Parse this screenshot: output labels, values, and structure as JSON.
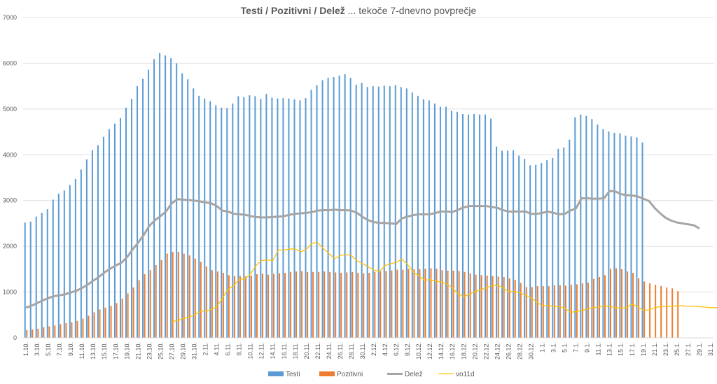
{
  "chart_data": {
    "type": "bar",
    "title_bold": "Testi / Pozitivni / Delež",
    "title_rest": " ... tekoče 7-dnevno povprečje",
    "ylim": [
      0,
      7000
    ],
    "yticks": [
      0,
      1000,
      2000,
      3000,
      4000,
      5000,
      6000,
      7000
    ],
    "x_tick_labels": [
      "1.10.",
      "3.10.",
      "5.10.",
      "7.10.",
      "9.10.",
      "11.10.",
      "13.10.",
      "15.10.",
      "17.10.",
      "19.10.",
      "21.10.",
      "23.10.",
      "25.10.",
      "27.10.",
      "29.10.",
      "31.10.",
      "2.11.",
      "4.11.",
      "6.11.",
      "8.11.",
      "10.11.",
      "12.11.",
      "14.11.",
      "16.11.",
      "18.11.",
      "20.11.",
      "22.11.",
      "24.11.",
      "26.11.",
      "28.11.",
      "30.11.",
      "2.12.",
      "4.12.",
      "6.12.",
      "8.12.",
      "10.12.",
      "12.12.",
      "14.12.",
      "16.12.",
      "18.12.",
      "20.12.",
      "22.12.",
      "24.12.",
      "26.12.",
      "28.12.",
      "30.12.",
      "1.1.",
      "3.1.",
      "5.1.",
      "7.1.",
      "9.1.",
      "11.1.",
      "13.1.",
      "15.1.",
      "17.1.",
      "19.1.",
      "21.1.",
      "23.1.",
      "25.1.",
      "27.1.",
      "29.1.",
      "31.1."
    ],
    "legend": [
      {
        "name": "Testi",
        "color": "#5b9bd5",
        "kind": "bar"
      },
      {
        "name": "Pozitivni",
        "color": "#ed7d31",
        "kind": "bar"
      },
      {
        "name": "Delež",
        "color": "#a5a5a5",
        "kind": "line"
      },
      {
        "name": "vo11d",
        "color": "#ffc000",
        "kind": "line"
      }
    ],
    "series": [
      {
        "name": "Testi",
        "values": [
          2520,
          2540,
          2650,
          2730,
          2810,
          3020,
          3150,
          3220,
          3340,
          3470,
          3680,
          3900,
          4100,
          4210,
          4390,
          4560,
          4680,
          4800,
          5030,
          5220,
          5500,
          5660,
          5860,
          6090,
          6220,
          6170,
          6110,
          6000,
          5780,
          5650,
          5450,
          5290,
          5230,
          5170,
          5080,
          5030,
          5020,
          5120,
          5280,
          5260,
          5300,
          5280,
          5220,
          5330,
          5250,
          5230,
          5240,
          5230,
          5210,
          5190,
          5240,
          5420,
          5520,
          5630,
          5680,
          5700,
          5730,
          5760,
          5680,
          5530,
          5570,
          5480,
          5500,
          5490,
          5510,
          5500,
          5520,
          5480,
          5450,
          5360,
          5290,
          5210,
          5190,
          5120,
          5050,
          5050,
          4960,
          4940,
          4890,
          4880,
          4890,
          4880,
          4880,
          4790,
          4180,
          4090,
          4090,
          4100,
          3980,
          3910,
          3770,
          3780,
          3820,
          3880,
          3930,
          4130,
          4160,
          4330,
          4820,
          4880,
          4850,
          4780,
          4660,
          4560,
          4510,
          4480,
          4470,
          4420,
          4400,
          4380,
          4270
        ],
        "color": "#5b9bd5"
      },
      {
        "name": "Pozitivni",
        "values": [
          170,
          180,
          200,
          230,
          250,
          270,
          300,
          320,
          340,
          370,
          420,
          480,
          560,
          620,
          660,
          700,
          760,
          860,
          970,
          1100,
          1260,
          1390,
          1480,
          1590,
          1700,
          1840,
          1880,
          1880,
          1840,
          1800,
          1730,
          1660,
          1560,
          1480,
          1450,
          1420,
          1370,
          1350,
          1350,
          1340,
          1360,
          1390,
          1400,
          1380,
          1400,
          1410,
          1420,
          1440,
          1450,
          1460,
          1440,
          1440,
          1440,
          1450,
          1440,
          1430,
          1420,
          1430,
          1440,
          1420,
          1410,
          1420,
          1440,
          1450,
          1460,
          1470,
          1490,
          1490,
          1510,
          1500,
          1500,
          1510,
          1520,
          1510,
          1480,
          1470,
          1470,
          1460,
          1440,
          1410,
          1380,
          1370,
          1360,
          1350,
          1340,
          1330,
          1300,
          1270,
          1200,
          1110,
          1110,
          1130,
          1130,
          1130,
          1150,
          1150,
          1140,
          1160,
          1170,
          1190,
          1210,
          1290,
          1330,
          1370,
          1510,
          1520,
          1500,
          1450,
          1420,
          1300,
          1230,
          1190,
          1160,
          1130,
          1100,
          1080,
          1020
        ],
        "color": "#ed7d31"
      },
      {
        "name": "Delež",
        "values": [
          660,
          700,
          760,
          820,
          870,
          910,
          930,
          950,
          990,
          1030,
          1090,
          1160,
          1250,
          1330,
          1430,
          1510,
          1580,
          1640,
          1760,
          1930,
          2080,
          2250,
          2450,
          2570,
          2660,
          2770,
          2940,
          3030,
          3020,
          3010,
          3000,
          2980,
          2960,
          2940,
          2880,
          2780,
          2760,
          2710,
          2700,
          2690,
          2660,
          2640,
          2630,
          2630,
          2640,
          2650,
          2660,
          2690,
          2710,
          2720,
          2730,
          2750,
          2780,
          2790,
          2790,
          2800,
          2790,
          2790,
          2780,
          2730,
          2640,
          2570,
          2530,
          2510,
          2510,
          2500,
          2490,
          2610,
          2650,
          2680,
          2700,
          2700,
          2700,
          2730,
          2760,
          2760,
          2750,
          2800,
          2850,
          2880,
          2880,
          2880,
          2880,
          2860,
          2840,
          2790,
          2760,
          2760,
          2760,
          2760,
          2710,
          2710,
          2730,
          2760,
          2730,
          2700,
          2710,
          2780,
          2830,
          3050,
          3050,
          3040,
          3040,
          3050,
          3210,
          3200,
          3140,
          3120,
          3110,
          3090,
          3040,
          2990,
          2840,
          2720,
          2620,
          2560,
          2520,
          2500,
          2480,
          2460,
          2390
        ],
        "color": "#a5a5a5"
      },
      {
        "name": "vo11d",
        "values": [
          null,
          null,
          null,
          null,
          null,
          null,
          null,
          null,
          null,
          null,
          null,
          null,
          null,
          null,
          null,
          null,
          null,
          null,
          null,
          null,
          null,
          null,
          null,
          null,
          null,
          null,
          350,
          380,
          420,
          450,
          500,
          570,
          600,
          610,
          680,
          860,
          1060,
          1140,
          1280,
          1290,
          1390,
          1580,
          1690,
          1700,
          1690,
          1920,
          1920,
          1940,
          1940,
          1880,
          1940,
          2070,
          2080,
          1950,
          1840,
          1730,
          1800,
          1820,
          1800,
          1680,
          1620,
          1550,
          1480,
          1450,
          1580,
          1620,
          1650,
          1720,
          1600,
          1440,
          1360,
          1260,
          1270,
          1240,
          1220,
          1180,
          1090,
          960,
          900,
          950,
          1010,
          1050,
          1090,
          1140,
          1150,
          1100,
          1000,
          1020,
          990,
          930,
          880,
          780,
          700,
          700,
          690,
          680,
          650,
          560,
          570,
          600,
          630,
          660,
          670,
          700,
          690,
          660,
          650,
          660,
          740,
          680,
          600,
          610,
          660,
          680,
          690,
          690,
          700,
          700,
          690,
          690,
          680,
          670,
          660,
          660,
          660
        ],
        "color": "#ffc000"
      }
    ]
  }
}
